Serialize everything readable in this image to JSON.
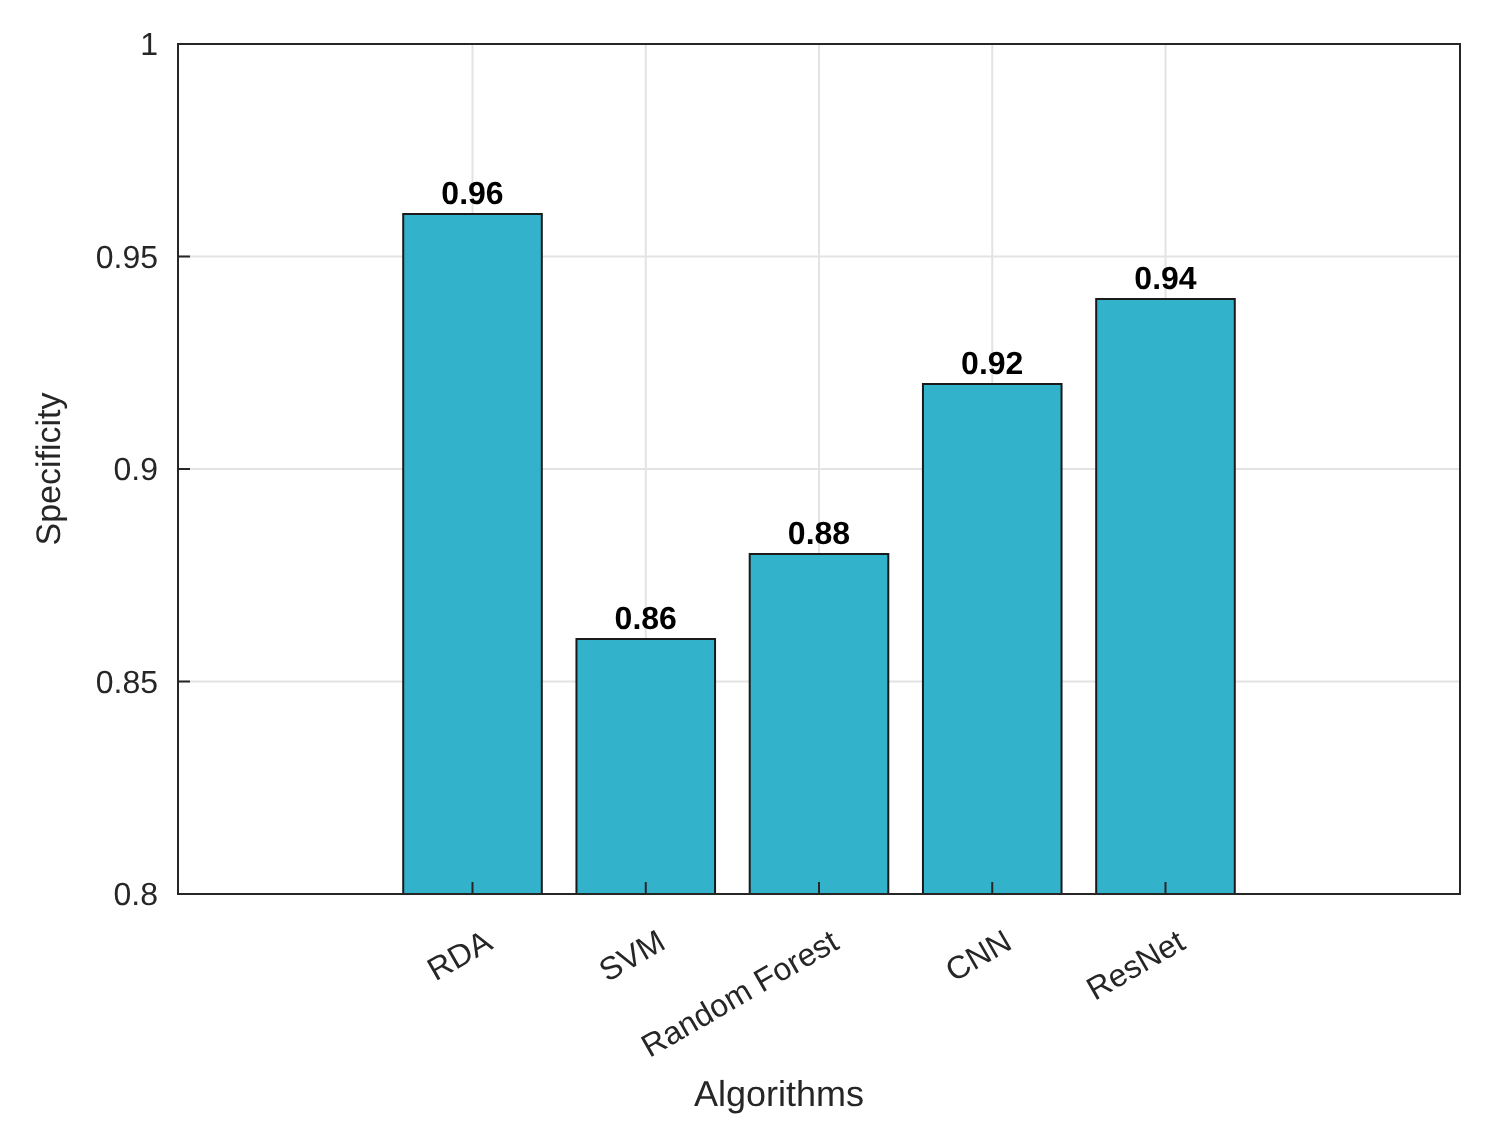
{
  "chart_data": {
    "type": "bar",
    "xlabel": "Algorithms",
    "ylabel": "Specificity",
    "categories": [
      "RDA",
      "SVM",
      "Random Forest",
      "CNN",
      "ResNet"
    ],
    "values": [
      0.96,
      0.86,
      0.88,
      0.92,
      0.94
    ],
    "color": "#33b2cc",
    "ylim": [
      0.8,
      1
    ],
    "yticks": [
      0.8,
      0.85,
      0.9,
      0.95,
      1
    ],
    "grid": true,
    "data_labels": true
  }
}
